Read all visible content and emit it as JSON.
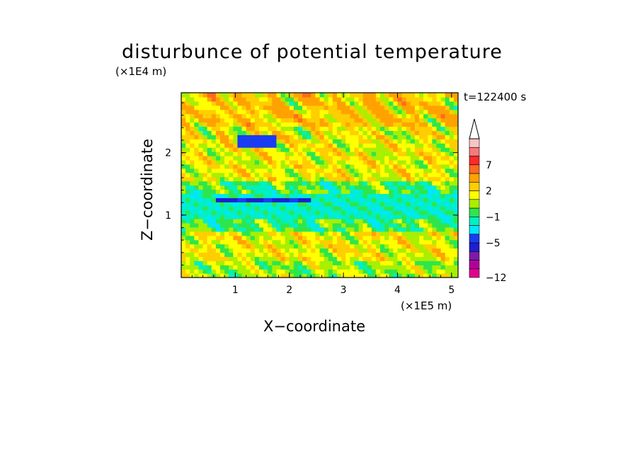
{
  "chart_data": {
    "type": "heatmap",
    "title": "disturbunce of potential temperature",
    "xlabel": "X−coordinate",
    "ylabel": "Z−coordinate",
    "x_multiplier_label": "(×1E5 m)",
    "y_multiplier_label": "(×1E4 m)",
    "time_label": "t=122400 s",
    "xlim": [
      0,
      5.12
    ],
    "ylim": [
      0,
      2.96
    ],
    "x_ticks": [
      1,
      2,
      3,
      4,
      5
    ],
    "y_ticks": [
      1,
      2
    ],
    "x_tick_labels": [
      "1",
      "2",
      "3",
      "4",
      "5"
    ],
    "y_tick_labels": [
      "1",
      "2"
    ],
    "colorbar": {
      "levels": [
        -12,
        -11,
        -9,
        -7,
        -5,
        -3,
        -2,
        -1,
        0,
        1,
        2,
        3,
        5,
        7,
        9,
        11
      ],
      "colors": [
        "#e2008c",
        "#b4009a",
        "#7a1ba8",
        "#1d1ed2",
        "#1a3cf2",
        "#00e6ff",
        "#00f0c2",
        "#2ee64b",
        "#a8ef00",
        "#ffff00",
        "#ffce00",
        "#ffa200",
        "#ff6a1e",
        "#ff2a2a",
        "#f77a7a",
        "#fbc4c4"
      ],
      "labeled_levels": [
        "7",
        "2",
        "−1",
        "−5",
        "−12"
      ],
      "extend": "max"
    },
    "bands": [
      {
        "z_range": [
          0.0,
          0.3
        ],
        "dominant_value": 0.5,
        "description_level": "yellow"
      },
      {
        "z_range": [
          0.3,
          0.75
        ],
        "dominant_value": 1.5,
        "description_level": "yellow-orange"
      },
      {
        "z_range": [
          0.75,
          0.95
        ],
        "dominant_value": -0.5,
        "description_level": "green"
      },
      {
        "z_range": [
          0.95,
          1.35
        ],
        "dominant_value": -1.5,
        "description_level": "cyan"
      },
      {
        "z_range": [
          1.35,
          1.55
        ],
        "dominant_value": -0.5,
        "description_level": "green"
      },
      {
        "z_range": [
          1.55,
          2.4
        ],
        "dominant_value": 1.5,
        "description_level": "yellow-orange"
      },
      {
        "z_range": [
          2.4,
          2.96
        ],
        "dominant_value": 2.5,
        "description_level": "orange"
      }
    ]
  }
}
